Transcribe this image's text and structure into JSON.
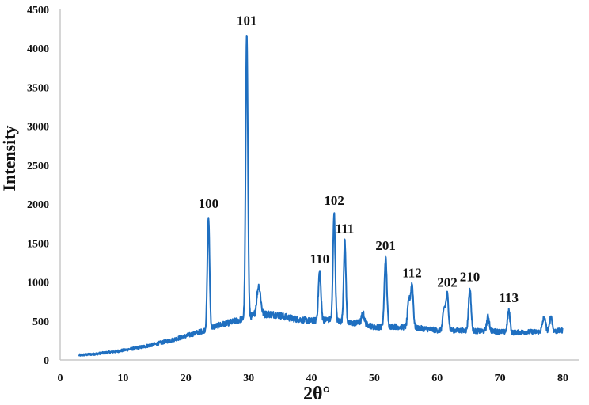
{
  "chart_data": {
    "type": "line",
    "title": "",
    "xlabel": "2θ°",
    "ylabel": "Intensity",
    "xlim": [
      0,
      80
    ],
    "ylim": [
      0,
      4500
    ],
    "xticks": [
      0,
      10,
      20,
      30,
      40,
      50,
      60,
      70,
      80
    ],
    "yticks": [
      0,
      500,
      1000,
      1500,
      2000,
      2500,
      3000,
      3500,
      4000,
      4500
    ],
    "grid": false,
    "legend": null,
    "line_color": "#1f6fc0",
    "baseline": {
      "x": [
        3,
        6,
        9,
        12,
        15,
        18,
        21,
        23,
        25,
        28,
        30.5,
        33,
        34.5,
        37,
        40,
        43,
        46,
        48,
        50,
        53,
        55,
        58,
        60,
        63,
        66,
        69,
        72,
        75,
        78,
        80
      ],
      "y": [
        60,
        80,
        110,
        150,
        200,
        260,
        330,
        380,
        440,
        500,
        560,
        590,
        580,
        530,
        500,
        520,
        470,
        480,
        420,
        430,
        420,
        400,
        380,
        380,
        370,
        370,
        350,
        360,
        360,
        380
      ]
    },
    "peaks": [
      {
        "hkl": "100",
        "two_theta": 23.6,
        "intensity": 1830,
        "width": 0.35
      },
      {
        "hkl": "101",
        "two_theta": 29.7,
        "intensity": 4200,
        "width": 0.35
      },
      {
        "hkl": "",
        "two_theta": 31.6,
        "intensity": 950,
        "width": 0.6
      },
      {
        "hkl": "110",
        "two_theta": 41.3,
        "intensity": 1130,
        "width": 0.4
      },
      {
        "hkl": "102",
        "two_theta": 43.6,
        "intensity": 1890,
        "width": 0.35
      },
      {
        "hkl": "111",
        "two_theta": 45.3,
        "intensity": 1520,
        "width": 0.35
      },
      {
        "hkl": "",
        "two_theta": 48.2,
        "intensity": 600,
        "width": 0.4
      },
      {
        "hkl": "201",
        "two_theta": 51.8,
        "intensity": 1300,
        "width": 0.4
      },
      {
        "hkl": "",
        "two_theta": 55.5,
        "intensity": 760,
        "width": 0.4
      },
      {
        "hkl": "112",
        "two_theta": 56.0,
        "intensity": 960,
        "width": 0.4
      },
      {
        "hkl": "",
        "two_theta": 61.1,
        "intensity": 650,
        "width": 0.4
      },
      {
        "hkl": "202",
        "two_theta": 61.6,
        "intensity": 840,
        "width": 0.4
      },
      {
        "hkl": "210",
        "two_theta": 65.2,
        "intensity": 910,
        "width": 0.4
      },
      {
        "hkl": "",
        "two_theta": 68.1,
        "intensity": 560,
        "width": 0.4
      },
      {
        "hkl": "113",
        "two_theta": 71.4,
        "intensity": 630,
        "width": 0.4
      },
      {
        "hkl": "",
        "two_theta": 77.0,
        "intensity": 540,
        "width": 0.5
      },
      {
        "hkl": "",
        "two_theta": 78.1,
        "intensity": 560,
        "width": 0.4
      }
    ],
    "annotations": [
      {
        "text": "100",
        "x": 23.6,
        "y": 1950
      },
      {
        "text": "101",
        "x": 29.7,
        "y": 4300
      },
      {
        "text": "110",
        "x": 41.3,
        "y": 1240
      },
      {
        "text": "102",
        "x": 43.6,
        "y": 1990
      },
      {
        "text": "111",
        "x": 45.3,
        "y": 1630
      },
      {
        "text": "201",
        "x": 51.8,
        "y": 1410
      },
      {
        "text": "112",
        "x": 56.0,
        "y": 1060
      },
      {
        "text": "202",
        "x": 61.6,
        "y": 940
      },
      {
        "text": "210",
        "x": 65.2,
        "y": 1010
      },
      {
        "text": "113",
        "x": 71.4,
        "y": 740
      }
    ]
  }
}
